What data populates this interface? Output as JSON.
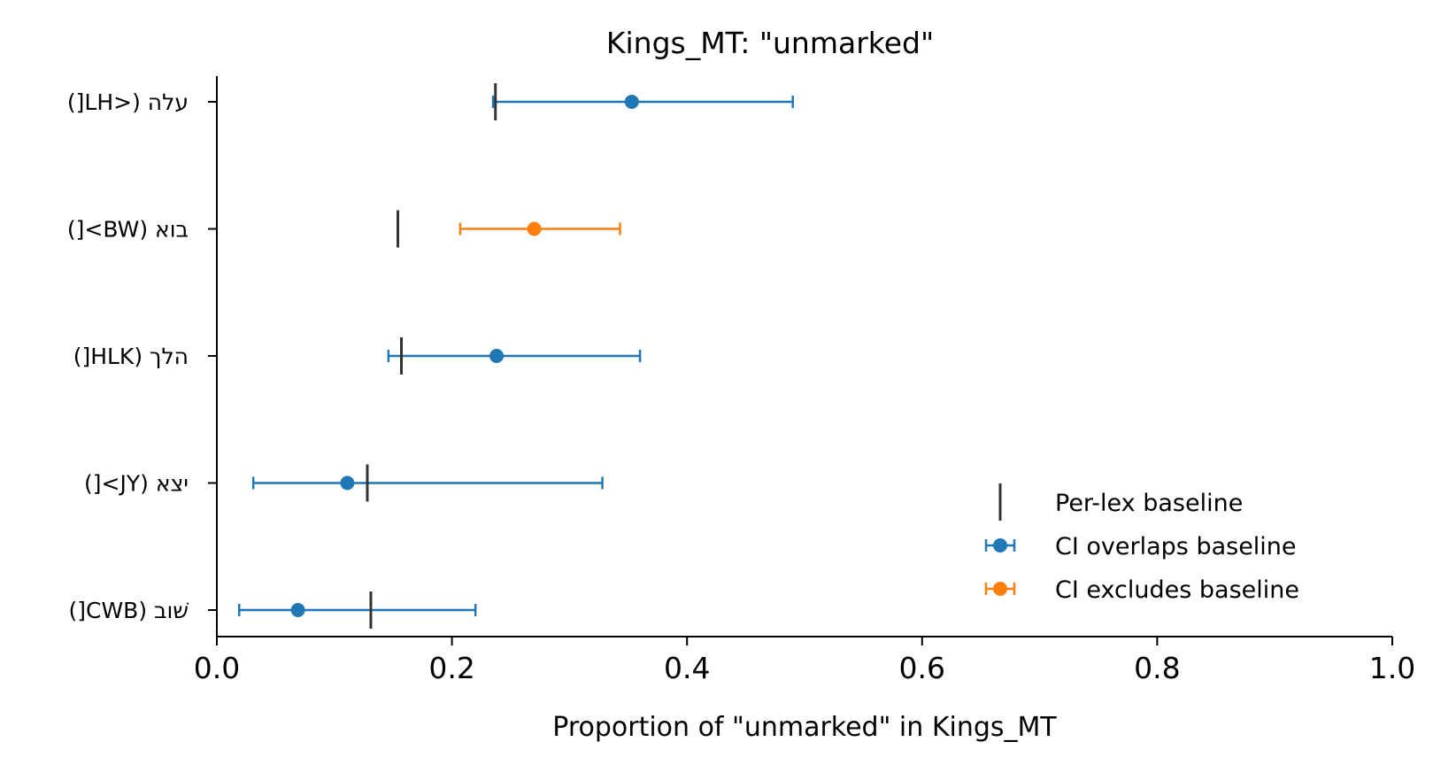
{
  "chart_data": {
    "type": "scatter",
    "title": "Kings_MT: \"unmarked\"",
    "xlabel": "Proportion of \"unmarked\" in Kings_MT",
    "ylabel": "",
    "xlim": [
      0.0,
      1.0
    ],
    "xticks": [
      0.0,
      0.2,
      0.4,
      0.6,
      0.8,
      1.0
    ],
    "xtick_labels": [
      "0.0",
      "0.2",
      "0.4",
      "0.6",
      "0.8",
      "1.0"
    ],
    "grid": false,
    "legend_position": "lower-right",
    "colors": {
      "overlap": "#1f77b4",
      "exclude": "#ff7f0e",
      "baseline": "#333333"
    },
    "legend": [
      {
        "label": "Per-lex baseline",
        "marker": "vline"
      },
      {
        "label": "CI overlaps baseline",
        "marker": "errorbar",
        "color_key": "overlap"
      },
      {
        "label": "CI excludes baseline",
        "marker": "errorbar",
        "color_key": "exclude"
      }
    ],
    "points": [
      {
        "label": "עלה (<LH[)",
        "value": 0.353,
        "ci_low": 0.235,
        "ci_high": 0.49,
        "baseline": 0.237,
        "status": "overlap"
      },
      {
        "label": "בוא (BW>[)",
        "value": 0.27,
        "ci_low": 0.207,
        "ci_high": 0.343,
        "baseline": 0.154,
        "status": "exclude"
      },
      {
        "label": "הלך (HLK[)",
        "value": 0.238,
        "ci_low": 0.146,
        "ci_high": 0.36,
        "baseline": 0.157,
        "status": "overlap"
      },
      {
        "label": "יצא (JY>[)",
        "value": 0.111,
        "ci_low": 0.031,
        "ci_high": 0.328,
        "baseline": 0.128,
        "status": "overlap"
      },
      {
        "label": "שׁוב (CWB[)",
        "value": 0.069,
        "ci_low": 0.019,
        "ci_high": 0.22,
        "baseline": 0.131,
        "status": "overlap"
      }
    ]
  }
}
